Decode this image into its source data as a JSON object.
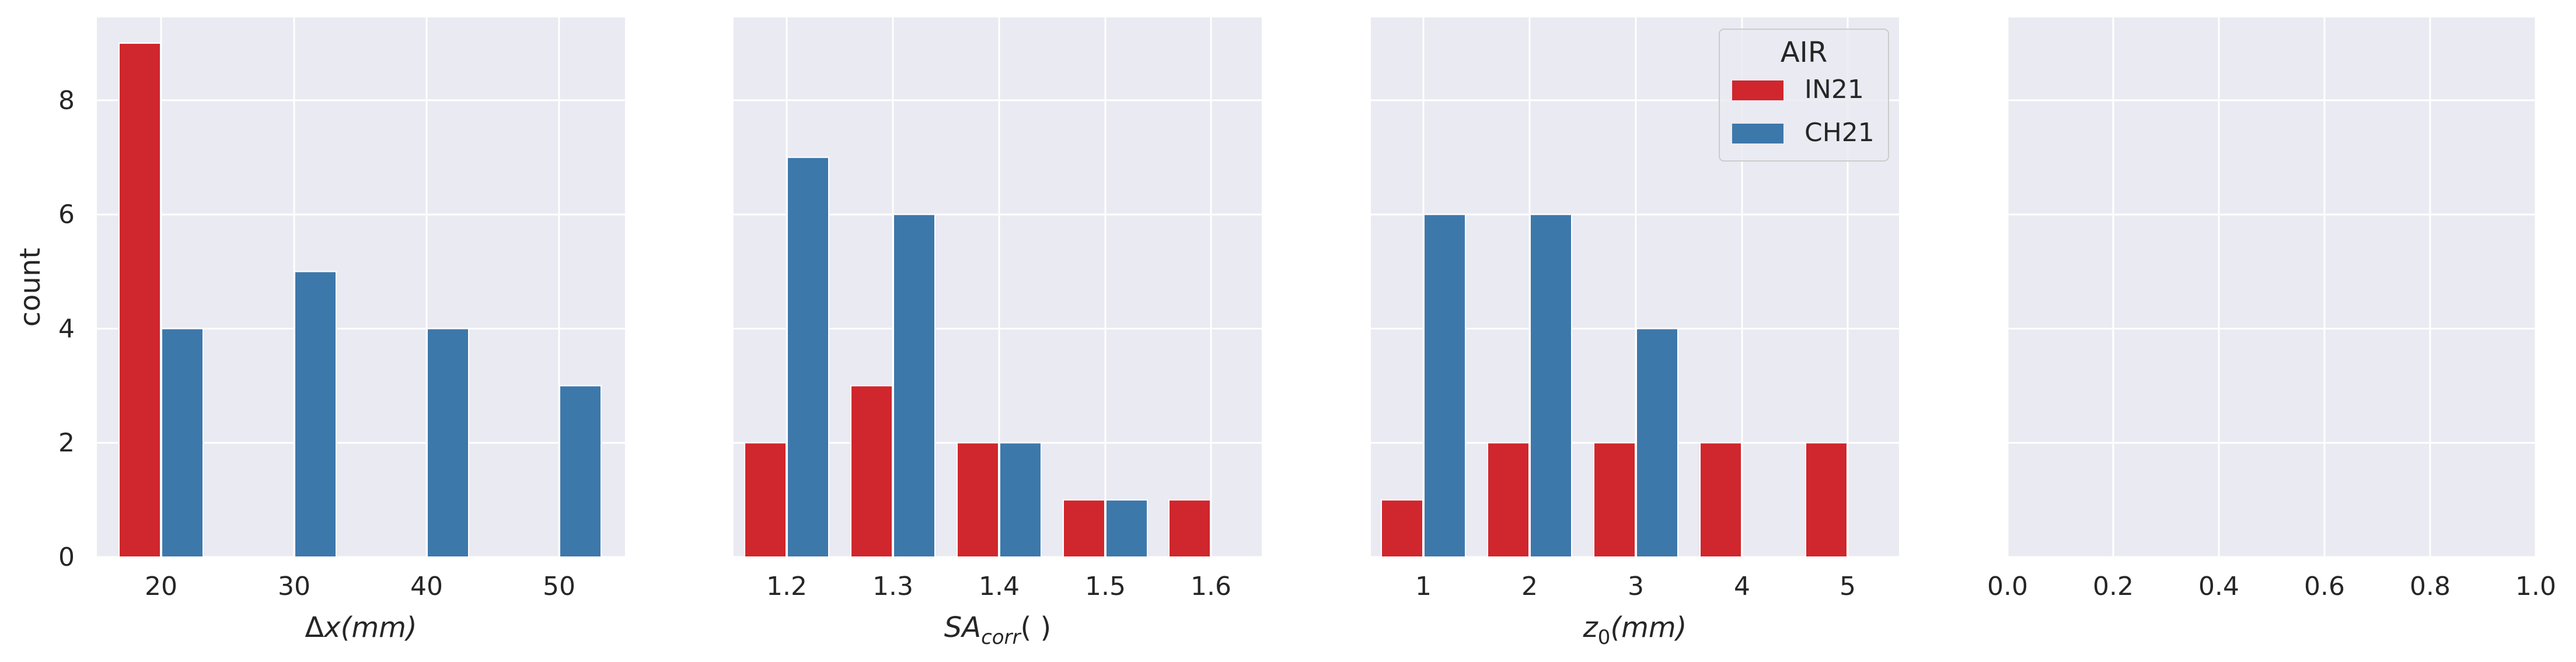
{
  "chart_data": [
    {
      "type": "bar",
      "categories": [
        "20",
        "30",
        "40",
        "50"
      ],
      "series": [
        {
          "name": "IN21",
          "values": [
            9,
            0,
            0,
            0
          ]
        },
        {
          "name": "CH21",
          "values": [
            4,
            5,
            4,
            3
          ]
        }
      ],
      "xlabel": "Δx(mm)",
      "xlabel_parts": [
        {
          "t": "Δ",
          "style": "normal"
        },
        {
          "t": "x(mm)",
          "style": "italic"
        }
      ],
      "ylabel": "count",
      "yticks": [
        0,
        2,
        4,
        6,
        8
      ],
      "ylim": [
        0,
        9.45
      ],
      "grid": true
    },
    {
      "type": "bar",
      "categories": [
        "1.2",
        "1.3",
        "1.4",
        "1.5",
        "1.6"
      ],
      "series": [
        {
          "name": "IN21",
          "values": [
            2,
            3,
            2,
            1,
            1
          ]
        },
        {
          "name": "CH21",
          "values": [
            7,
            6,
            2,
            1,
            0
          ]
        }
      ],
      "xlabel": "SAcorr( )",
      "xlabel_parts": [
        {
          "t": "SA",
          "style": "italic"
        },
        {
          "t": "corr",
          "style": "italic-sub"
        },
        {
          "t": "( )",
          "style": "normal"
        }
      ],
      "ylim": [
        0,
        9.45
      ],
      "grid": true
    },
    {
      "type": "bar",
      "categories": [
        "1",
        "2",
        "3",
        "4",
        "5"
      ],
      "series": [
        {
          "name": "IN21",
          "values": [
            1,
            2,
            2,
            2,
            2
          ]
        },
        {
          "name": "CH21",
          "values": [
            6,
            6,
            4,
            0,
            0
          ]
        }
      ],
      "xlabel": "z0(mm)",
      "xlabel_parts": [
        {
          "t": "z",
          "style": "italic"
        },
        {
          "t": "0",
          "style": "sub"
        },
        {
          "t": "(mm)",
          "style": "italic"
        }
      ],
      "ylim": [
        0,
        9.45
      ],
      "grid": true,
      "legend": {
        "title": "AIR",
        "entries": [
          "IN21",
          "CH21"
        ],
        "placement": "upper-right"
      }
    },
    {
      "type": "bar",
      "categories": [],
      "series": [],
      "xticks": [
        "0.0",
        "0.2",
        "0.4",
        "0.6",
        "0.8",
        "1.0"
      ],
      "xlim": [
        0,
        1
      ],
      "ylim": [
        0,
        9.45
      ],
      "grid": true
    }
  ],
  "colors": {
    "IN21": "#D0262D",
    "CH21": "#3D78AB",
    "plot_background": "#EAEAF2",
    "grid": "#FFFFFF",
    "text": "#262626"
  }
}
